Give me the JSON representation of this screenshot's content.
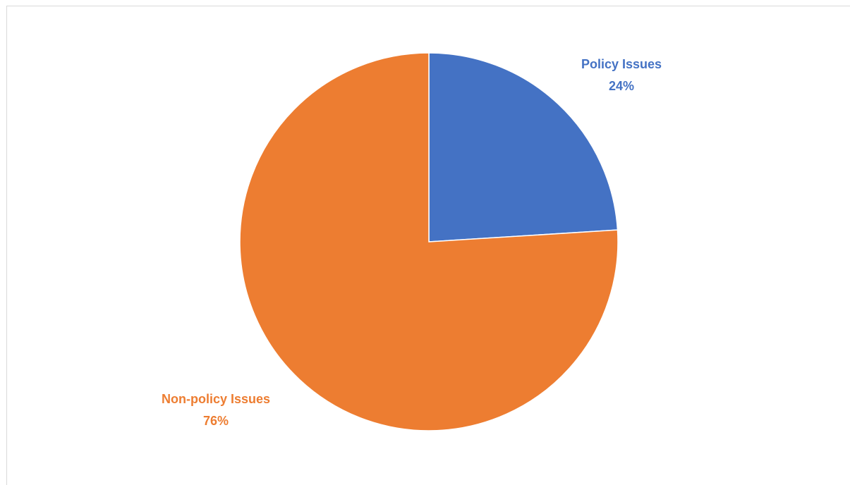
{
  "chart_data": {
    "type": "pie",
    "title": "",
    "slices": [
      {
        "name": "Policy Issues",
        "value": 24,
        "label": "24%",
        "color": "#4472c4"
      },
      {
        "name": "Non-policy Issues",
        "value": 76,
        "label": "76%",
        "color": "#ed7d31"
      }
    ],
    "start_angle_deg": 0,
    "direction": "clockwise",
    "legend": "none",
    "data_labels": "outside"
  }
}
